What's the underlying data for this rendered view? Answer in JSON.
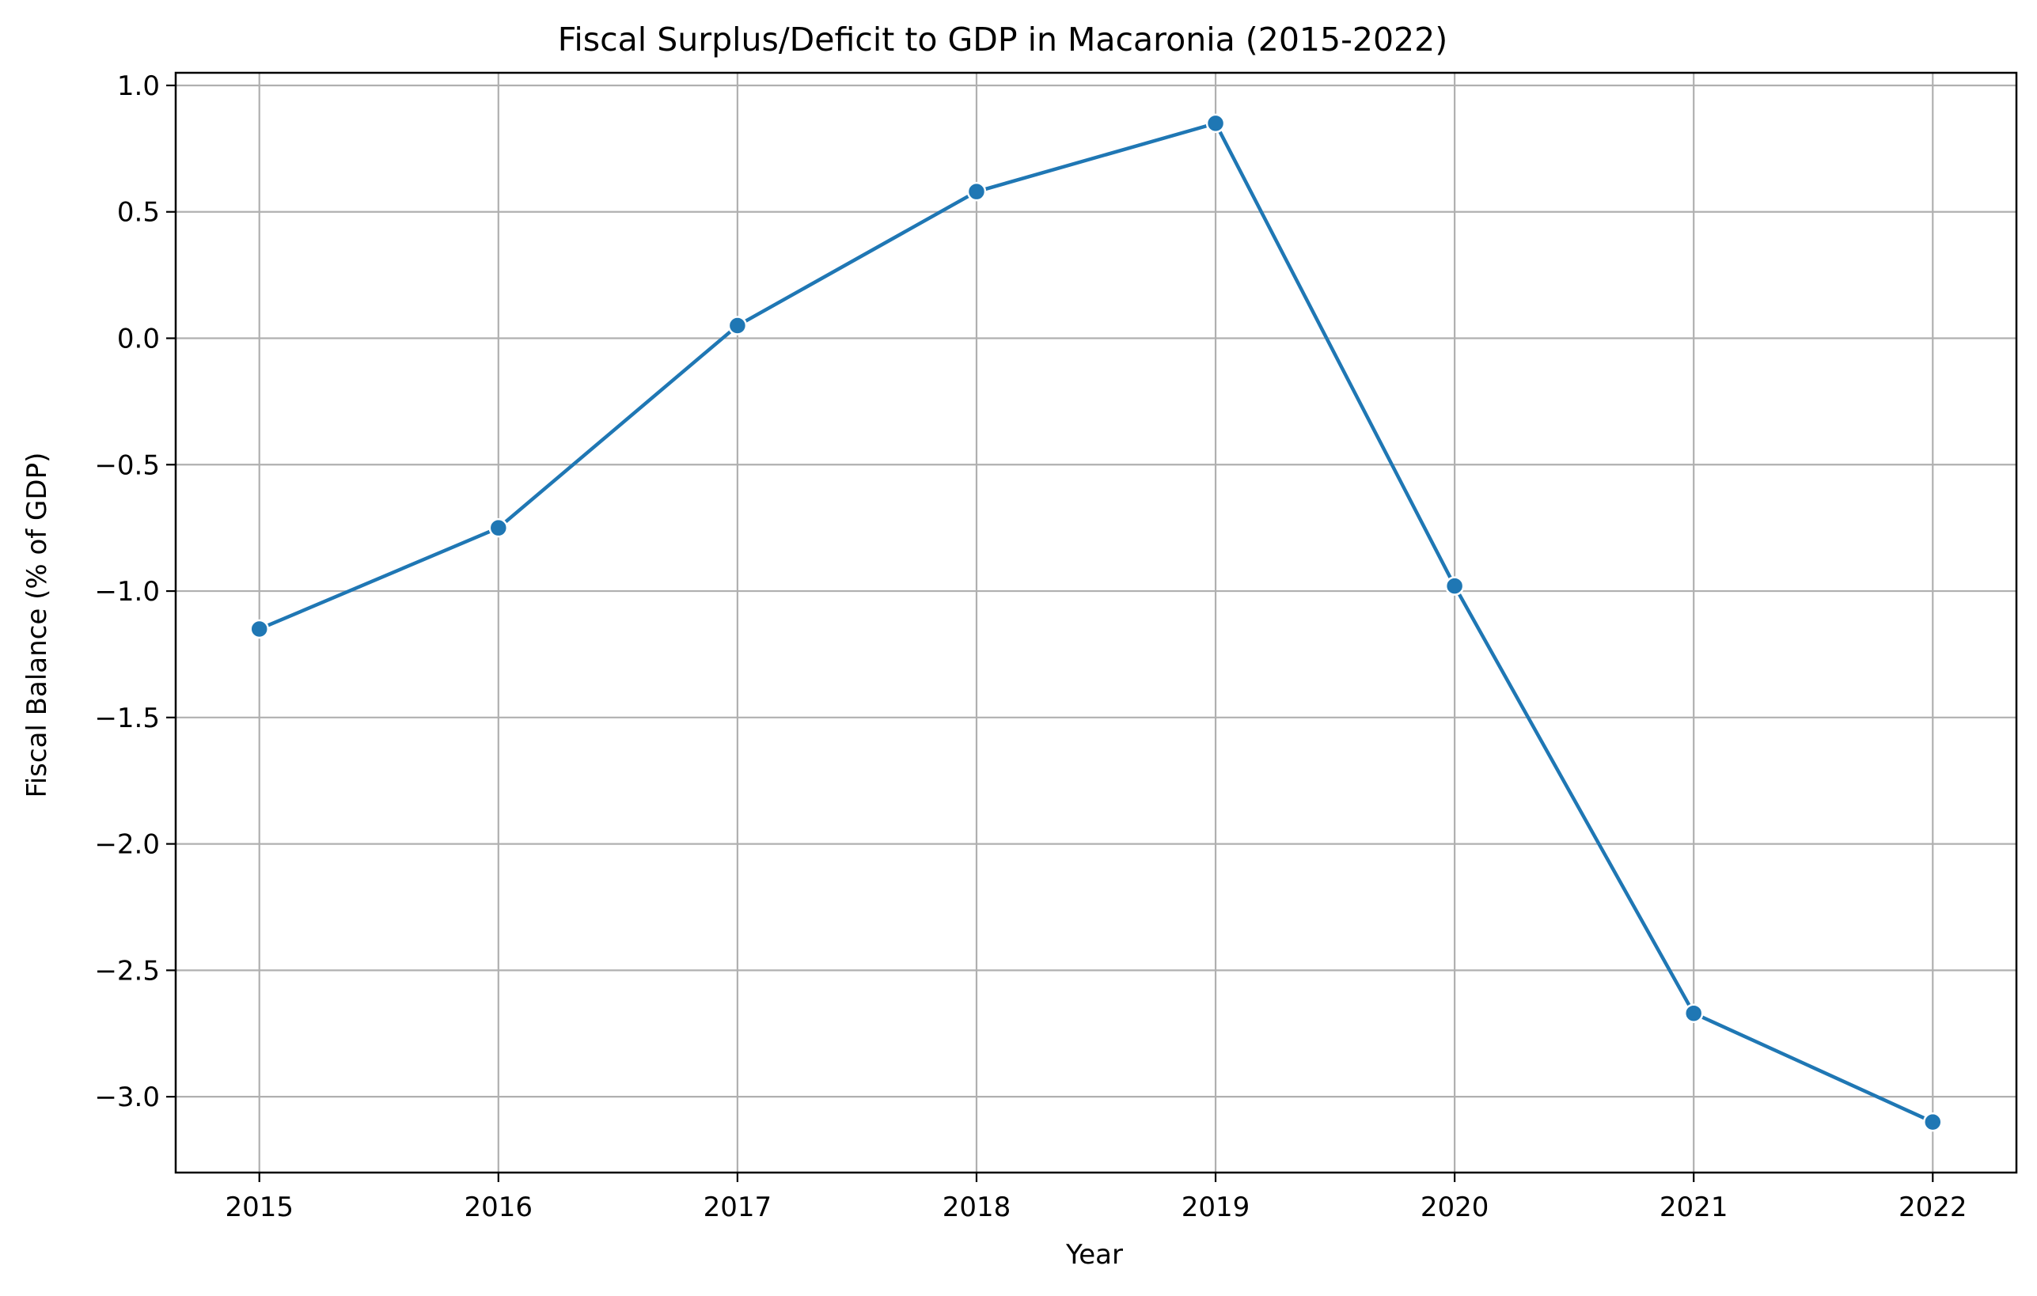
{
  "chart_data": {
    "type": "line",
    "title": "Fiscal Surplus/Deficit to GDP in Macaronia (2015-2022)",
    "xlabel": "Year",
    "ylabel": "Fiscal Balance (% of GDP)",
    "x": [
      2015,
      2016,
      2017,
      2018,
      2019,
      2020,
      2021,
      2022
    ],
    "x_tick_labels": [
      "2015",
      "2016",
      "2017",
      "2018",
      "2019",
      "2020",
      "2021",
      "2022"
    ],
    "y_ticks": [
      1.0,
      0.5,
      0.0,
      -0.5,
      -1.0,
      -1.5,
      -2.0,
      -2.5,
      -3.0
    ],
    "y_tick_labels": [
      "1.0",
      "0.5",
      "0.0",
      "−0.5",
      "−1.0",
      "−1.5",
      "−2.0",
      "−2.5",
      "−3.0"
    ],
    "xlim": [
      2014.65,
      2022.35
    ],
    "ylim": [
      -3.3,
      1.05
    ],
    "grid": true,
    "series": [
      {
        "values": [
          -1.15,
          -0.75,
          0.05,
          0.58,
          0.85,
          -0.98,
          -2.67,
          -3.1
        ],
        "color": "#1f77b4",
        "marker": "circle"
      }
    ]
  }
}
